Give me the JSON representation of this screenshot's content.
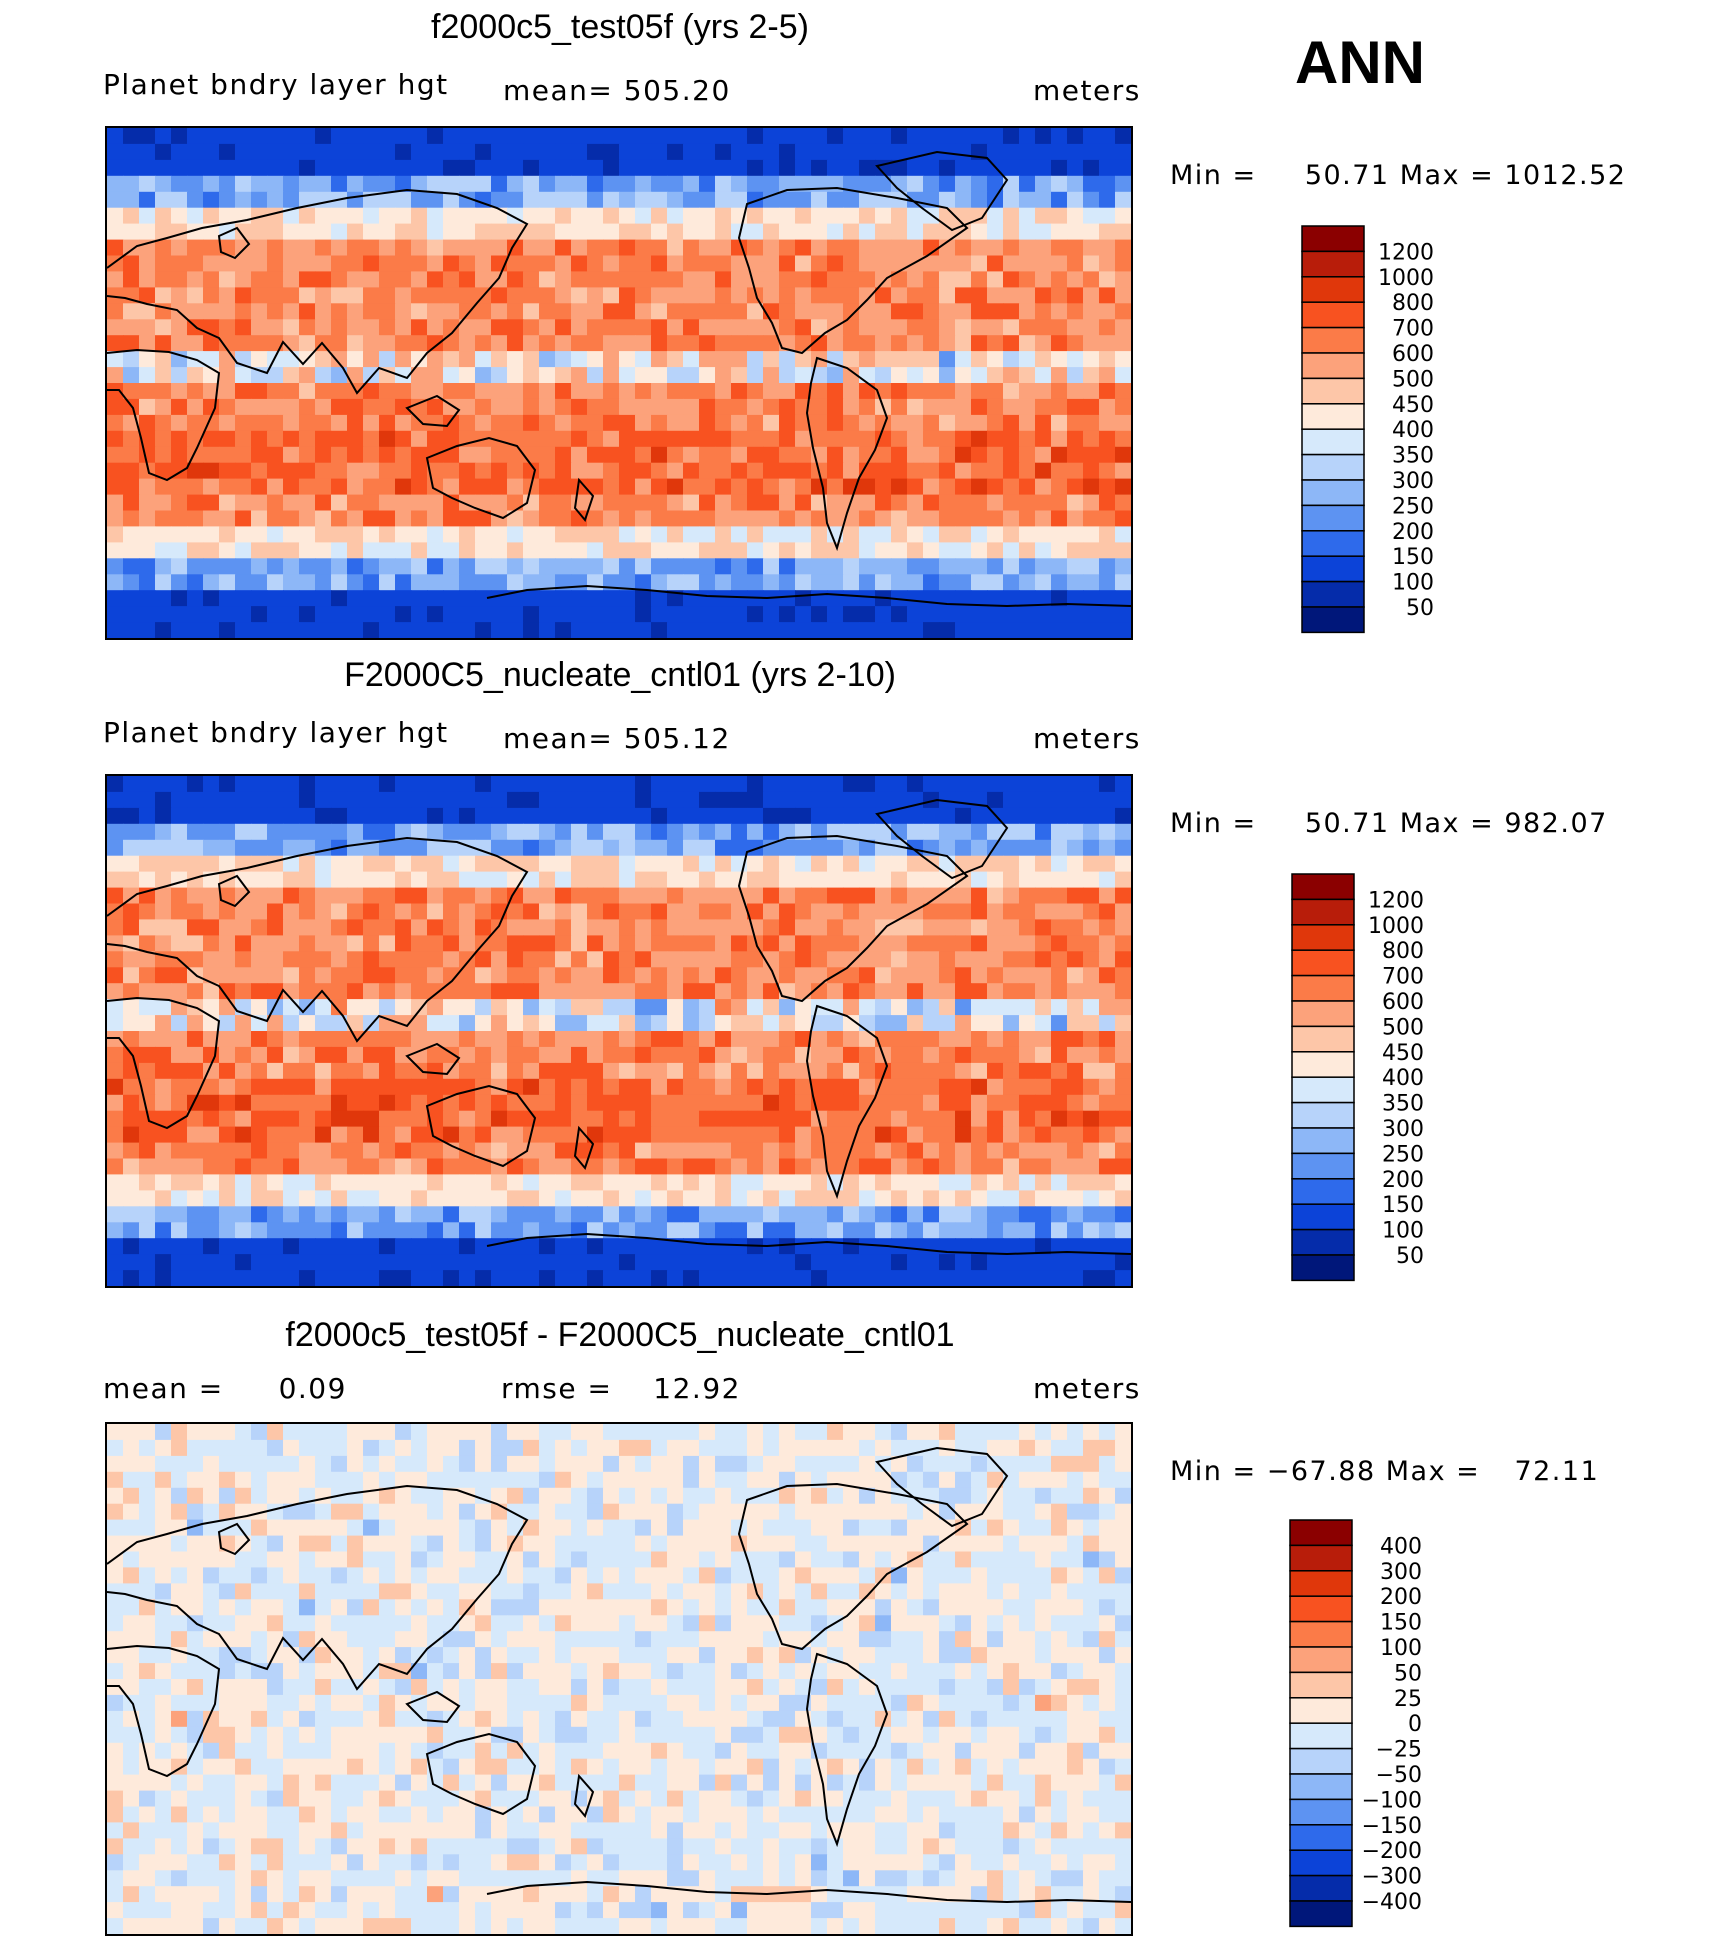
{
  "season": "ANN",
  "panels": [
    {
      "title": "f2000c5_test05f (yrs 2-5)",
      "variable": "Planet bndry layer hgt",
      "stat1_label": "mean=",
      "stat1_value": "505.20",
      "stat2_label": "",
      "stat2_value": "",
      "units": "meters",
      "min_label": "Min  =",
      "min_value": "50.71",
      "max_label": "Max  =",
      "max_value": "1012.52"
    },
    {
      "title": "F2000C5_nucleate_cntl01 (yrs 2-10)",
      "variable": "Planet bndry layer hgt",
      "stat1_label": "mean=",
      "stat1_value": "505.12",
      "stat2_label": "",
      "stat2_value": "",
      "units": "meters",
      "min_label": "Min  =",
      "min_value": "50.71",
      "max_label": "Max  =",
      "max_value": "982.07"
    },
    {
      "title": "f2000c5_test05f - F2000C5_nucleate_cntl01",
      "variable": "",
      "stat1_label": "mean  =",
      "stat1_value": "0.09",
      "stat2_label": "rmse  =",
      "stat2_value": "12.92",
      "units": "meters",
      "min_label": "Min  =",
      "min_value": "−67.88",
      "max_label": "Max  =",
      "max_value": "72.11"
    }
  ],
  "chart_data": [
    {
      "type": "heatmap",
      "title": "f2000c5_test05f (yrs 2-5)",
      "colorbar_levels": [
        "1200",
        "1000",
        "800",
        "700",
        "600",
        "500",
        "450",
        "400",
        "350",
        "300",
        "250",
        "200",
        "150",
        "100",
        "50"
      ],
      "colorbar_colors": [
        "#8b0000",
        "#b81d0a",
        "#e0370b",
        "#f85220",
        "#fb7b48",
        "#fca27b",
        "#fdc6a8",
        "#feeadb",
        "#d6e9fb",
        "#b7d3fa",
        "#8db7f7",
        "#5d93f2",
        "#2e6aeb",
        "#0c43d8",
        "#052caa",
        "#00177a"
      ],
      "value_range": [
        50.71,
        1012.52
      ],
      "units": "meters"
    },
    {
      "type": "heatmap",
      "title": "F2000C5_nucleate_cntl01 (yrs 2-10)",
      "colorbar_levels": [
        "1200",
        "1000",
        "800",
        "700",
        "600",
        "500",
        "450",
        "400",
        "350",
        "300",
        "250",
        "200",
        "150",
        "100",
        "50"
      ],
      "colorbar_colors": [
        "#8b0000",
        "#b81d0a",
        "#e0370b",
        "#f85220",
        "#fb7b48",
        "#fca27b",
        "#fdc6a8",
        "#feeadb",
        "#d6e9fb",
        "#b7d3fa",
        "#8db7f7",
        "#5d93f2",
        "#2e6aeb",
        "#0c43d8",
        "#052caa",
        "#00177a"
      ],
      "value_range": [
        50.71,
        982.07
      ],
      "units": "meters"
    },
    {
      "type": "heatmap",
      "title": "f2000c5_test05f - F2000C5_nucleate_cntl01",
      "colorbar_levels": [
        "400",
        "300",
        "200",
        "150",
        "100",
        "50",
        "25",
        "0",
        "−25",
        "−50",
        "−100",
        "−150",
        "−200",
        "−300",
        "−400"
      ],
      "colorbar_colors": [
        "#8b0000",
        "#b81d0a",
        "#e0370b",
        "#f85220",
        "#fb7b48",
        "#fca27b",
        "#fdc6a8",
        "#feeadb",
        "#d6e9fb",
        "#b7d3fa",
        "#8db7f7",
        "#5d93f2",
        "#2e6aeb",
        "#0c43d8",
        "#052caa",
        "#00177a"
      ],
      "value_range": [
        -67.88,
        72.11
      ],
      "units": "meters"
    }
  ]
}
